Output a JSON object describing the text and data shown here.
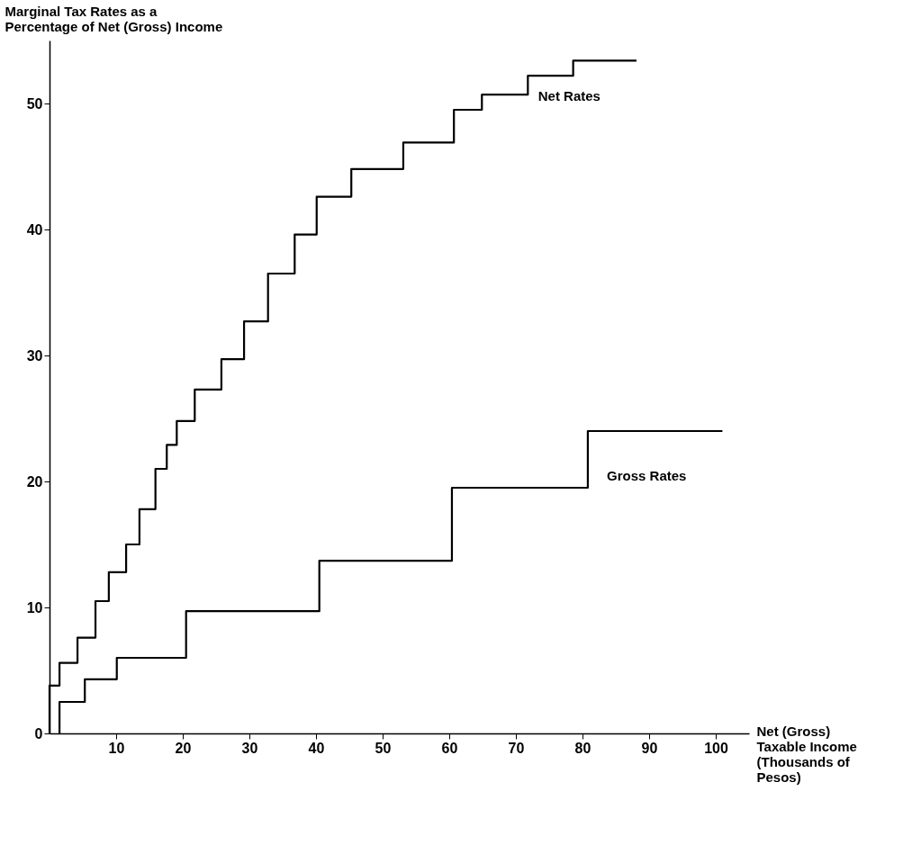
{
  "chart_data": {
    "type": "step",
    "xlabel": "Net (Gross)\nTaxable Income\n(Thousands of\nPesos)",
    "ylabel": "Marginal Tax Rates as a\nPercentage of Net (Gross) Income",
    "series": [
      {
        "name": "Net Rates",
        "color": "#000000",
        "x": [
          0,
          0,
          1.5,
          4.2,
          6.9,
          8.9,
          11.5,
          13.5,
          15.9,
          17.6,
          19.1,
          21.8,
          25.8,
          29.2,
          32.8,
          36.8,
          40.1,
          45.3,
          53.1,
          60.7,
          64.9,
          71.8,
          78.6,
          88.1
        ],
        "values": [
          0,
          3.8,
          5.6,
          7.6,
          10.5,
          12.8,
          15.0,
          17.8,
          21.0,
          22.9,
          24.8,
          27.3,
          29.7,
          32.7,
          36.5,
          39.6,
          42.6,
          44.8,
          46.9,
          49.5,
          50.7,
          52.2,
          53.4,
          53.4
        ]
      },
      {
        "name": "Gross Rates",
        "color": "#000000",
        "x": [
          1.5,
          1.5,
          5.3,
          10.1,
          20.5,
          40.5,
          60.4,
          80.8,
          101
        ],
        "values": [
          0,
          2.5,
          4.3,
          6.0,
          9.7,
          13.7,
          19.5,
          24.0,
          24.0
        ]
      }
    ],
    "xlim": [
      0,
      105
    ],
    "xticks": [
      10,
      20,
      30,
      40,
      50,
      60,
      70,
      80,
      90,
      100
    ],
    "ylim": [
      0,
      55
    ],
    "yticks": [
      0,
      10,
      20,
      30,
      40,
      50
    ],
    "marker": "none",
    "line_style": "solid"
  }
}
